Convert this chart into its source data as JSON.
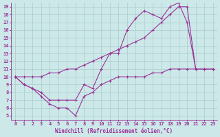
{
  "xlabel": "Windchill (Refroidissement éolien,°C)",
  "xlim": [
    -0.5,
    23.5
  ],
  "ylim": [
    4.5,
    19.5
  ],
  "xticks": [
    0,
    1,
    2,
    3,
    4,
    5,
    6,
    7,
    8,
    9,
    10,
    11,
    12,
    13,
    14,
    15,
    16,
    17,
    18,
    19,
    20,
    21,
    22,
    23
  ],
  "yticks": [
    5,
    6,
    7,
    8,
    9,
    10,
    11,
    12,
    13,
    14,
    15,
    16,
    17,
    18,
    19
  ],
  "bg_color": "#cce8e8",
  "line_color": "#993399",
  "grid_color": "#aacccc",
  "series": [
    {
      "x": [
        0,
        1,
        2,
        3,
        4,
        5,
        6,
        7,
        8,
        9,
        10,
        11,
        12,
        13,
        14,
        15,
        16,
        17,
        18,
        19,
        20,
        21,
        22,
        23
      ],
      "y": [
        10,
        9,
        8.5,
        7.5,
        6.5,
        6,
        6,
        5,
        7.5,
        8,
        9,
        9.5,
        10,
        10,
        10,
        10,
        10.5,
        10.5,
        11,
        11,
        11,
        11,
        11,
        11
      ]
    },
    {
      "x": [
        0,
        1,
        2,
        3,
        4,
        5,
        6,
        7,
        8,
        9,
        10,
        11,
        12,
        13,
        14,
        15,
        16,
        17,
        18,
        19,
        20,
        21,
        22,
        23
      ],
      "y": [
        10,
        10,
        10,
        10,
        10.5,
        10.5,
        11,
        11,
        11.5,
        12,
        12.5,
        13,
        13.5,
        14,
        14.5,
        15,
        16,
        17,
        18,
        19,
        19,
        11,
        11,
        11
      ]
    },
    {
      "x": [
        0,
        1,
        2,
        3,
        4,
        5,
        6,
        7,
        8,
        9,
        10,
        11,
        12,
        13,
        14,
        15,
        16,
        17,
        18,
        19,
        20,
        21,
        22,
        23
      ],
      "y": [
        10,
        9,
        8.5,
        8,
        7,
        7,
        7,
        7,
        9,
        8.5,
        11,
        13,
        13,
        16,
        17.5,
        18.5,
        18,
        17.5,
        19,
        19.5,
        17,
        11,
        11,
        11
      ]
    }
  ]
}
